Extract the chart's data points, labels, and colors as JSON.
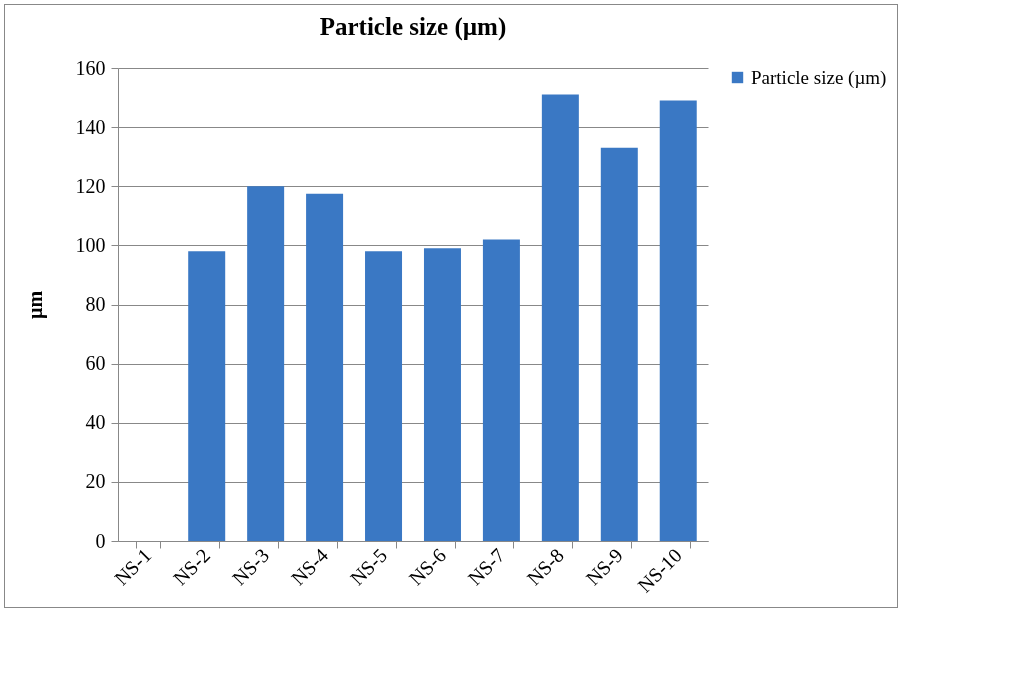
{
  "chart_data": {
    "type": "bar",
    "title": "Particle size (µm)",
    "ylabel": "µm",
    "categories": [
      "NS-1",
      "NS-2",
      "NS-3",
      "NS-4",
      "NS-5",
      "NS-6",
      "NS-7",
      "NS-8",
      "NS-9",
      "NS-10"
    ],
    "series": [
      {
        "name": "Particle size (µm)",
        "color": "#3a78c4",
        "values": [
          0,
          98,
          120,
          117.5,
          98,
          99,
          102,
          151,
          133,
          149
        ]
      }
    ],
    "ylim": [
      0,
      160
    ],
    "yticks": [
      0,
      20,
      40,
      60,
      80,
      100,
      120,
      140,
      160
    ],
    "grid": "y",
    "legend": "right"
  }
}
